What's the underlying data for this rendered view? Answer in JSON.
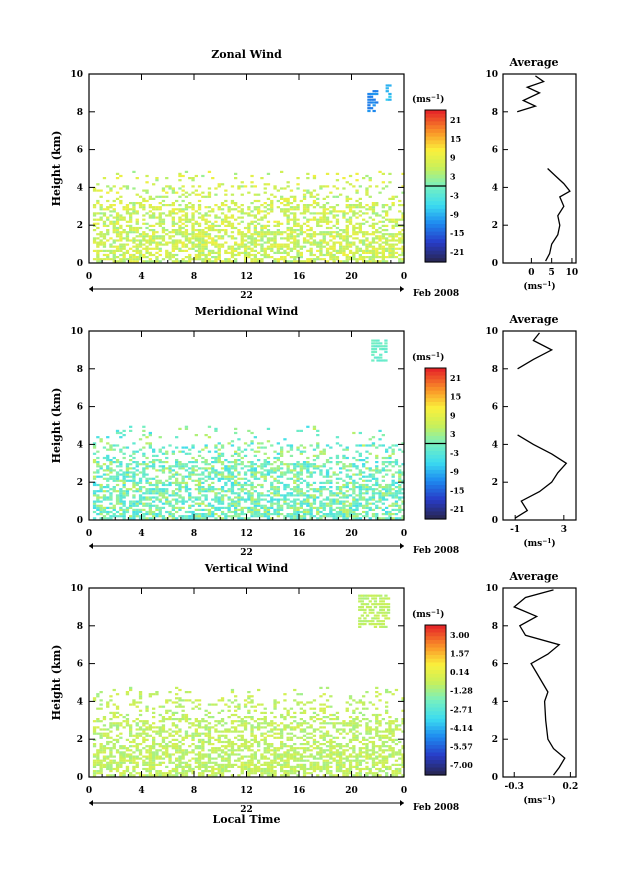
{
  "panels": [
    {
      "title": "Zonal Wind",
      "ylabel": "Height (km)",
      "unit": "(ms",
      "unit_sup": "−1",
      "colorbar_ticks": [
        "21",
        "15",
        "9",
        "3",
        "-3",
        "-9",
        "-15",
        "-21"
      ],
      "avg_title": "Average",
      "avg_xticks": [
        "0",
        "5",
        "10"
      ],
      "avg_xrange": [
        -7,
        11
      ],
      "avg_xlabel": "(ms",
      "avg_xlabel_sup": "−1"
    },
    {
      "title": "Meridional Wind",
      "ylabel": "Height (km)",
      "unit": "(ms",
      "unit_sup": "−1",
      "colorbar_ticks": [
        "21",
        "15",
        "9",
        "3",
        "-3",
        "-9",
        "-15",
        "-21"
      ],
      "avg_title": "Average",
      "avg_xticks": [
        "-1",
        "3"
      ],
      "avg_xrange": [
        -2,
        4
      ],
      "avg_xlabel": "(ms",
      "avg_xlabel_sup": "−1"
    },
    {
      "title": "Vertical Wind",
      "ylabel": "Height (km)",
      "unit": "(ms",
      "unit_sup": "−1",
      "colorbar_ticks": [
        "3.00",
        "1.57",
        "0.14",
        "-1.28",
        "-2.71",
        "-4.14",
        "-5.57",
        "-7.00"
      ],
      "avg_title": "Average",
      "avg_xticks": [
        "-0.3",
        "0.2"
      ],
      "avg_xrange": [
        -0.4,
        0.25
      ],
      "avg_xlabel": "(ms",
      "avg_xlabel_sup": "−1"
    }
  ],
  "xticks": [
    "0",
    "4",
    "8",
    "12",
    "16",
    "20",
    "0"
  ],
  "day_label": "22",
  "date_label": "Feb 2008",
  "yticks": [
    "0",
    "2",
    "4",
    "6",
    "8",
    "10"
  ],
  "xlabel_bottom": "Local Time",
  "chart_data": [
    {
      "type": "heatmap",
      "title": "Zonal Wind",
      "xlabel": "",
      "ylabel": "Height (km)",
      "x_range_hours": [
        0,
        24
      ],
      "ylim": [
        0,
        10
      ],
      "color_range": [
        -21,
        21
      ],
      "colorbar_label": "(ms-1)",
      "summary": "Echoes mainly below 5 km, values mostly 0 to 12 ms-1 (green-yellow); small blue patch near 8-9.5 km around hour 22-23",
      "average_profile": {
        "xlabel": "(ms-1)",
        "xlim": [
          -7,
          11
        ],
        "height_km": [
          0.1,
          0.5,
          1.0,
          1.5,
          2.0,
          2.5,
          3.0,
          3.5,
          3.8,
          4.2,
          4.6,
          5.0,
          8.0,
          8.3,
          8.6,
          9.0,
          9.3,
          9.6,
          9.9
        ],
        "value": [
          3.5,
          4.5,
          5.0,
          6.5,
          7.0,
          6.5,
          8.0,
          7.0,
          9.5,
          8.0,
          6.0,
          4.0,
          -3.5,
          1.0,
          -2.0,
          2.0,
          -1.0,
          3.0,
          1.0
        ]
      }
    },
    {
      "type": "heatmap",
      "title": "Meridional Wind",
      "xlabel": "",
      "ylabel": "Height (km)",
      "x_range_hours": [
        0,
        24
      ],
      "ylim": [
        0,
        10
      ],
      "color_range": [
        -21,
        21
      ],
      "colorbar_label": "(ms-1)",
      "summary": "Echoes below 5 km with values mostly -6 to 6 ms-1 (cyan-green); small patch near 9 km around hour 22",
      "average_profile": {
        "xlabel": "(ms-1)",
        "xlim": [
          -2,
          4
        ],
        "height_km": [
          0.1,
          0.5,
          1.0,
          1.5,
          2.0,
          2.5,
          3.0,
          3.5,
          4.0,
          4.5,
          8.0,
          8.5,
          9.0,
          9.5,
          9.9
        ],
        "value": [
          -1.0,
          0.0,
          -0.5,
          1.0,
          2.0,
          2.5,
          3.2,
          2.0,
          0.5,
          -0.8,
          -0.8,
          0.5,
          2.0,
          0.5,
          1.0
        ]
      }
    },
    {
      "type": "heatmap",
      "title": "Vertical Wind",
      "xlabel": "Local Time",
      "ylabel": "Height (km)",
      "x_range_hours": [
        0,
        24
      ],
      "ylim": [
        0,
        10
      ],
      "color_range": [
        -7.0,
        3.0
      ],
      "colorbar_label": "(ms-1)",
      "summary": "Echoes mainly below 4 km, values near 0 to 1.5 ms-1 (yellow-green) with a few orange points",
      "average_profile": {
        "xlabel": "(ms-1)",
        "xlim": [
          -0.4,
          0.25
        ],
        "height_km": [
          0.1,
          0.5,
          1.0,
          1.5,
          2.0,
          3.0,
          4.0,
          4.5,
          5.0,
          5.5,
          6.0,
          6.5,
          7.0,
          7.5,
          8.0,
          8.5,
          9.0,
          9.5,
          9.9
        ],
        "value": [
          0.05,
          0.1,
          0.15,
          0.05,
          0.0,
          -0.02,
          -0.03,
          0.0,
          -0.05,
          -0.1,
          -0.15,
          0.0,
          0.1,
          -0.2,
          -0.25,
          -0.1,
          -0.3,
          -0.2,
          0.05
        ]
      }
    }
  ]
}
